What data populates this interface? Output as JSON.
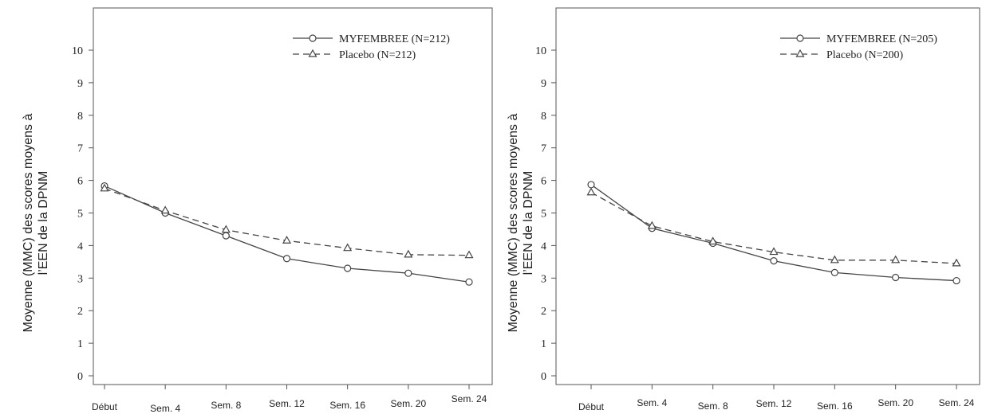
{
  "chart_data": [
    {
      "type": "line",
      "ylabel": [
        "Moyenne (MMC) des scores moyens à",
        "l’EEN de la DPNM"
      ],
      "categories": [
        "Début",
        "Sem. 4",
        "Sem. 8",
        "Sem. 12",
        "Sem. 16",
        "Sem. 20",
        "Sem. 24"
      ],
      "ylim": [
        0,
        10
      ],
      "yticks": [
        0,
        1,
        2,
        3,
        4,
        5,
        6,
        7,
        8,
        9,
        10
      ],
      "legend": "upper right",
      "series": [
        {
          "name": "MYFEMBREE (N=212)",
          "color": "#444444",
          "marker": "circle",
          "dash": "solid",
          "values": [
            5.83,
            5.0,
            4.3,
            3.6,
            3.3,
            3.15,
            2.88
          ]
        },
        {
          "name": "Placebo (N=212)",
          "color": "#444444",
          "marker": "triangle",
          "dash": "dashed",
          "values": [
            5.75,
            5.07,
            4.48,
            4.15,
            3.92,
            3.72,
            3.7
          ]
        }
      ]
    },
    {
      "type": "line",
      "ylabel": [
        "Moyenne (MMC) des scores moyens à",
        "l’EEN de la DPNM"
      ],
      "categories": [
        "Début",
        "Sem. 4",
        "Sem. 8",
        "Sem. 12",
        "Sem. 16",
        "Sem. 20",
        "Sem. 24"
      ],
      "ylim": [
        0,
        10
      ],
      "yticks": [
        0,
        1,
        2,
        3,
        4,
        5,
        6,
        7,
        8,
        9,
        10
      ],
      "legend": "upper right",
      "series": [
        {
          "name": "MYFEMBREE (N=205)",
          "color": "#444444",
          "marker": "circle",
          "dash": "solid",
          "values": [
            5.87,
            4.53,
            4.07,
            3.53,
            3.17,
            3.02,
            2.92
          ]
        },
        {
          "name": "Placebo (N=200)",
          "color": "#444444",
          "marker": "triangle",
          "dash": "dashed",
          "values": [
            5.63,
            4.6,
            4.12,
            3.8,
            3.55,
            3.55,
            3.45
          ]
        }
      ]
    }
  ]
}
